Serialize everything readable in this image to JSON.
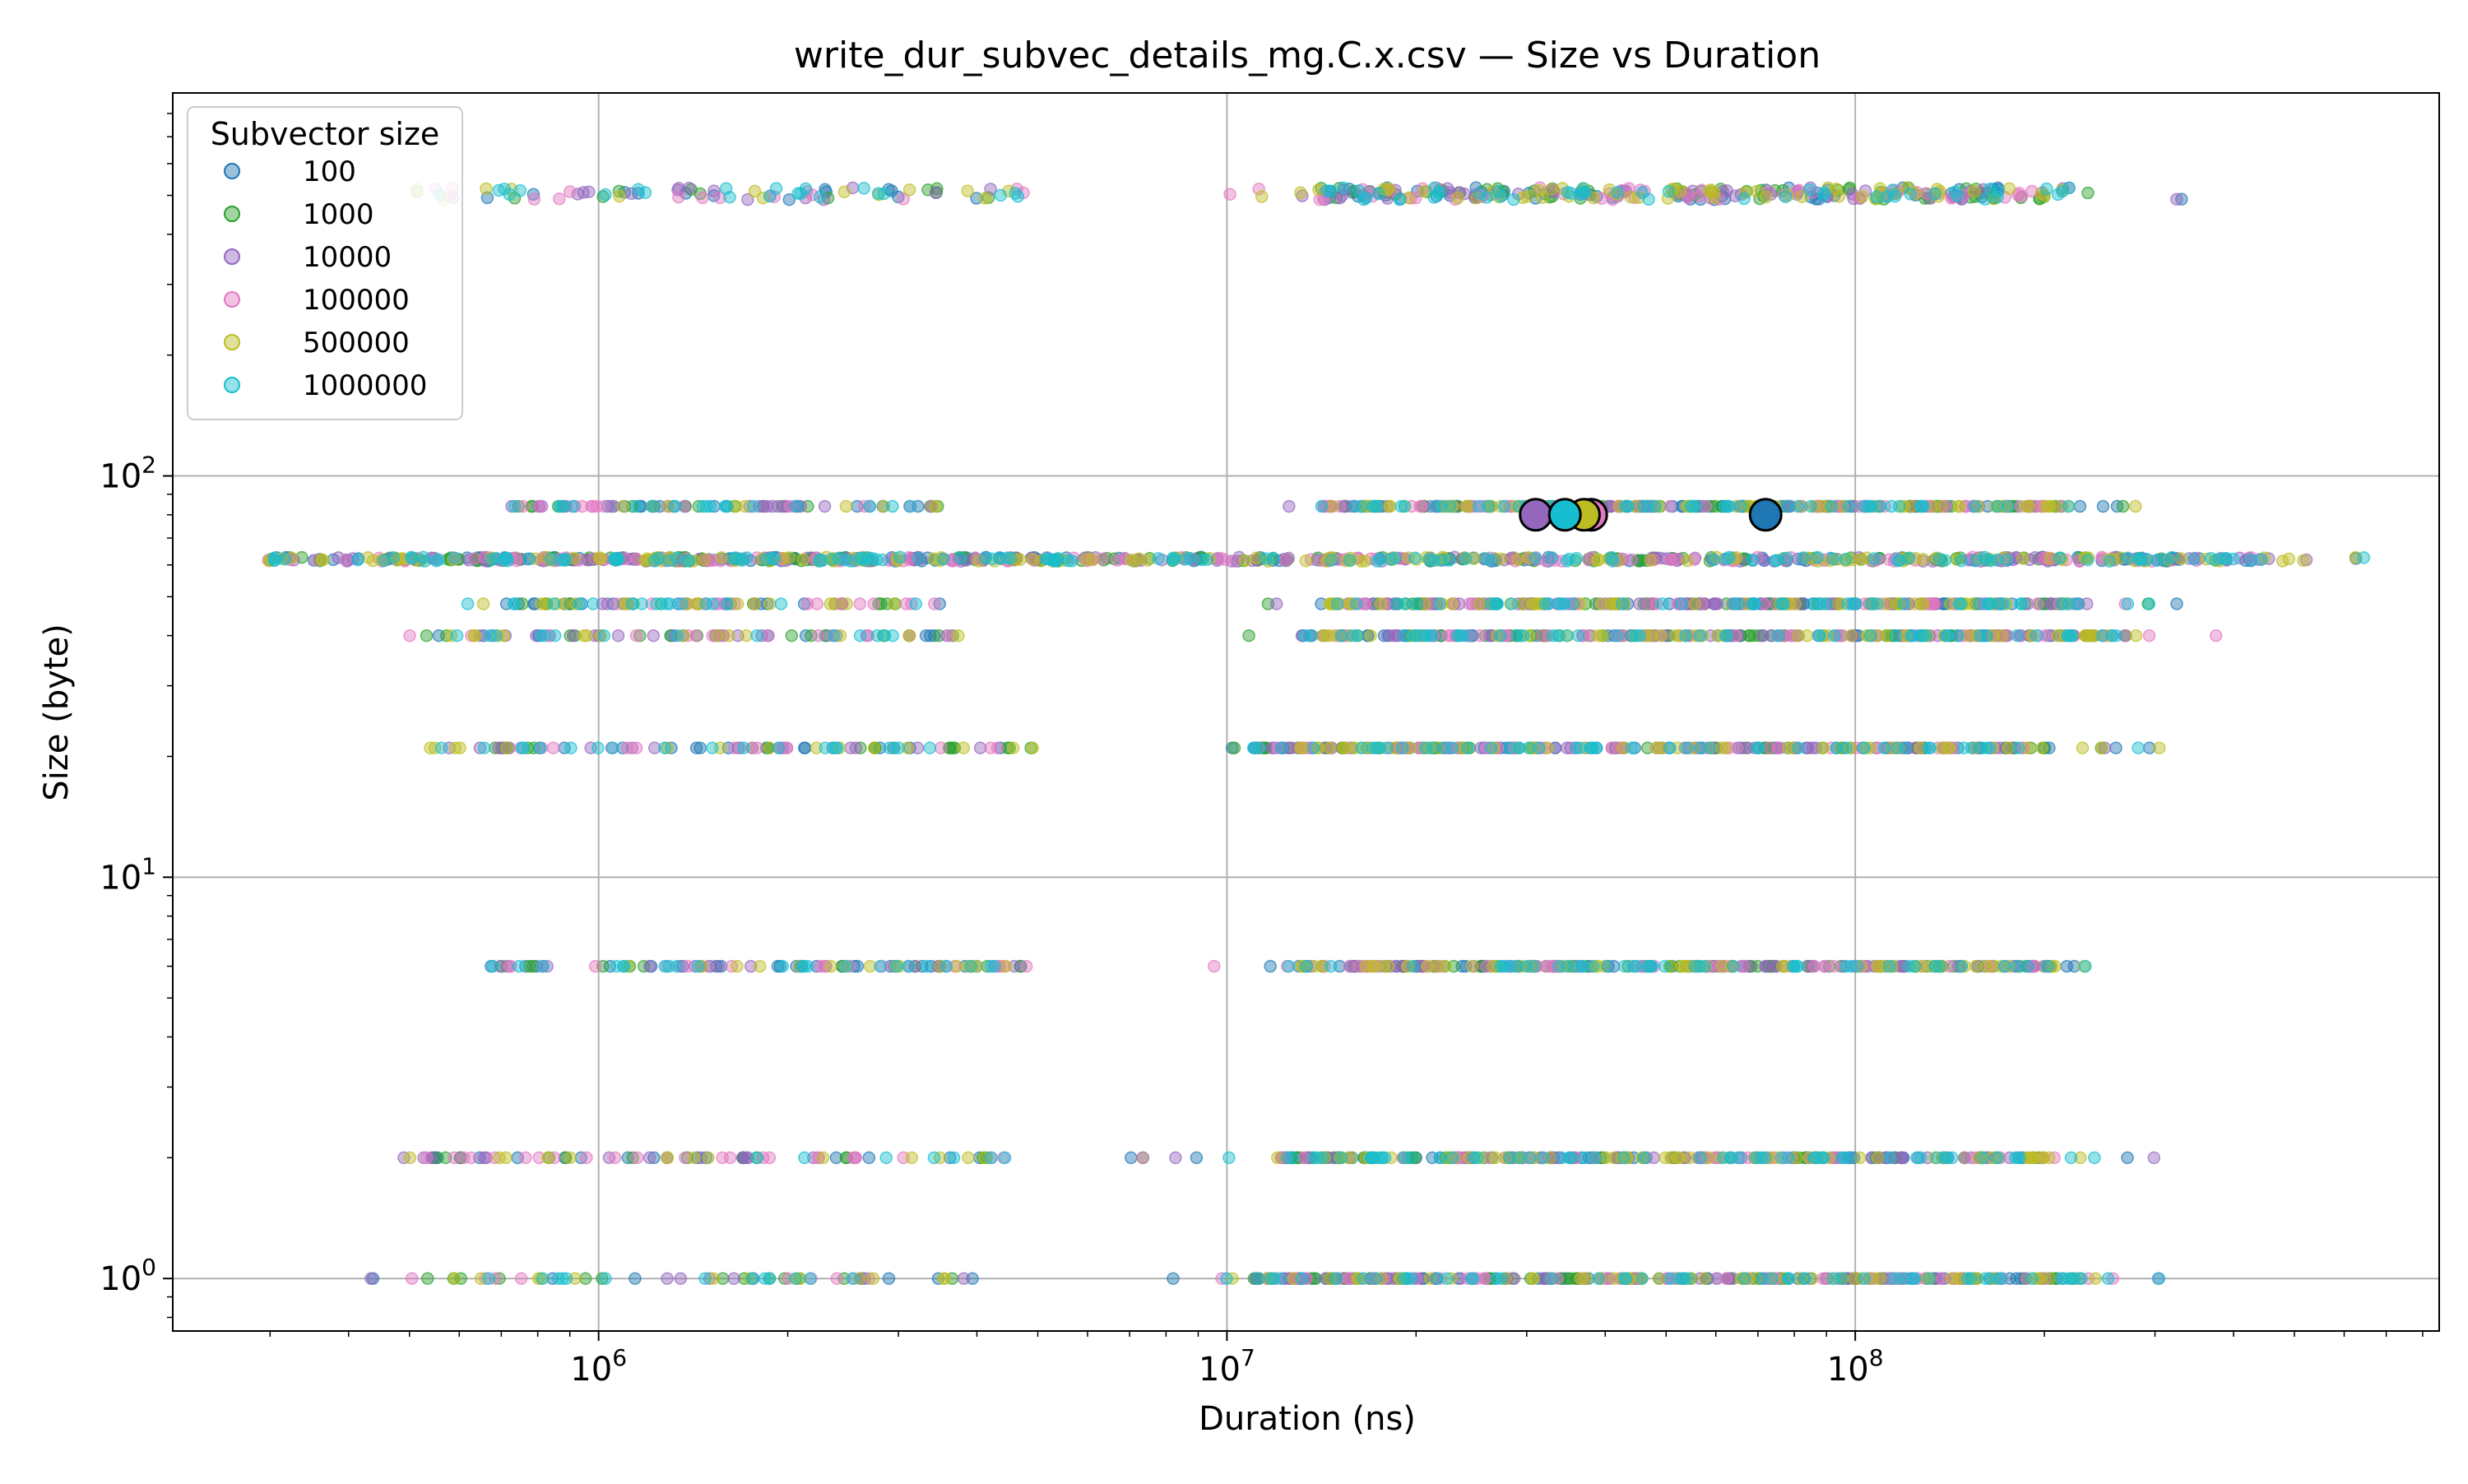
{
  "chart_data": {
    "type": "scatter",
    "title": "write_dur_subvec_details_mg.C.x.csv — Size vs Duration",
    "xlabel": "Duration (ns)",
    "ylabel": "Size (byte)",
    "xscale": "log",
    "yscale": "log",
    "xlim": [
      210000,
      850000000
    ],
    "ylim": [
      0.74,
      900
    ],
    "grid": true,
    "legend": {
      "title": "Subvector size",
      "placement": "upper-left"
    },
    "x_ticks": [
      {
        "value": 1000000,
        "base": "10",
        "exp": "6"
      },
      {
        "value": 10000000,
        "base": "10",
        "exp": "7"
      },
      {
        "value": 100000000,
        "base": "10",
        "exp": "8"
      }
    ],
    "y_ticks": [
      {
        "value": 1,
        "base": "10",
        "exp": "0"
      },
      {
        "value": 10,
        "base": "10",
        "exp": "1"
      },
      {
        "value": 100,
        "base": "10",
        "exp": "2"
      }
    ],
    "series": [
      {
        "name": "100",
        "color": "#1f77b4"
      },
      {
        "name": "1000",
        "color": "#2ca02c"
      },
      {
        "name": "10000",
        "color": "#9467bd"
      },
      {
        "name": "100000",
        "color": "#e377c2"
      },
      {
        "name": "500000",
        "color": "#bcbd22"
      },
      {
        "name": "1000000",
        "color": "#17becf"
      }
    ],
    "size_levels": [
      {
        "size": 1,
        "low": [
          420000,
          5000000
        ],
        "high": [
          8000000,
          310000000
        ],
        "dense": [
          11000000,
          230000000
        ]
      },
      {
        "size": 2,
        "low": [
          480000,
          4500000
        ],
        "high": [
          7000000,
          300000000
        ],
        "dense": [
          12000000,
          200000000
        ]
      },
      {
        "size": 6,
        "low": [
          650000,
          5000000
        ],
        "high": [
          8000000,
          260000000
        ],
        "dense": [
          13000000,
          210000000
        ]
      },
      {
        "size": 21,
        "low": [
          520000,
          5000000
        ],
        "high": [
          10000000,
          330000000
        ],
        "dense": [
          11000000,
          210000000
        ]
      },
      {
        "size": 40,
        "low": [
          470000,
          4000000
        ],
        "high": [
          9000000,
          400000000
        ],
        "dense": [
          13000000,
          280000000
        ]
      },
      {
        "size": 48,
        "low": [
          600000,
          3500000
        ],
        "high": [
          11000000,
          330000000
        ],
        "dense": [
          14000000,
          220000000
        ]
      },
      {
        "size": 62,
        "low": [
          290000,
          7000000
        ],
        "high": [
          8000000,
          650000000
        ],
        "dense": [
          450000,
          450000000
        ]
      },
      {
        "size": 84,
        "low": [
          700000,
          3500000
        ],
        "high": [
          10000000,
          280000000
        ],
        "dense": [
          14000000,
          220000000
        ]
      },
      {
        "size": 505,
        "low": [
          480000,
          5000000
        ],
        "high": [
          10000000,
          340000000
        ],
        "dense": [
          14000000,
          220000000
        ]
      }
    ],
    "highlight_points": [
      {
        "series": "10000",
        "x": 31000000,
        "y": 80
      },
      {
        "series": "100000",
        "x": 38000000,
        "y": 80
      },
      {
        "series": "500000",
        "x": 37000000,
        "y": 80
      },
      {
        "series": "1000000",
        "x": 34500000,
        "y": 80
      },
      {
        "series": "100",
        "x": 72000000,
        "y": 80
      }
    ]
  }
}
